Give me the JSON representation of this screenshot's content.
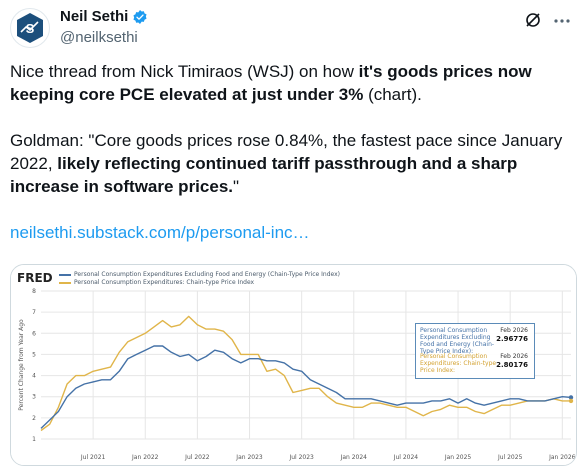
{
  "author": {
    "display_name": "Neil Sethi",
    "handle": "@neilksethi"
  },
  "tweet": {
    "p1_a": "Nice thread from Nick Timiraos (WSJ) on how ",
    "p1_b": "it's goods prices now keeping core PCE elevated at just under 3%",
    "p1_c": " (chart).",
    "p2_a": "Goldman: \"Core goods prices rose 0.84%, the fastest pace since January 2022, ",
    "p2_b": "likely reflecting continued tariff passthrough and a sharp increase in software prices.",
    "p2_c": "\"",
    "link": "neilsethi.substack.com/p/personal-inc…"
  },
  "chart_data": {
    "type": "line",
    "source_logo": "FRED",
    "ylabel": "Percent Change from Year Ago",
    "ylim": [
      1,
      8
    ],
    "y_ticks": [
      1,
      2,
      3,
      4,
      5,
      6,
      7,
      8
    ],
    "x_tick_labels": [
      "Jul 2021",
      "Jan 2022",
      "Jul 2022",
      "Jan 2023",
      "Jul 2023",
      "Jan 2024",
      "Jul 2024",
      "Jan 2025",
      "Jul 2025",
      "Jan 2026"
    ],
    "x_range": [
      "2021-01",
      "2026-02"
    ],
    "legend_position": "top-left",
    "series": [
      {
        "name": "Personal Consumption Expenditures Excluding Food and Energy (Chain-Type Price Index)",
        "color": "#4572a7",
        "dates": [
          "2021-01",
          "2021-02",
          "2021-03",
          "2021-04",
          "2021-05",
          "2021-06",
          "2021-07",
          "2021-08",
          "2021-09",
          "2021-10",
          "2021-11",
          "2021-12",
          "2022-01",
          "2022-02",
          "2022-03",
          "2022-04",
          "2022-05",
          "2022-06",
          "2022-07",
          "2022-08",
          "2022-09",
          "2022-10",
          "2022-11",
          "2022-12",
          "2023-01",
          "2023-02",
          "2023-03",
          "2023-04",
          "2023-05",
          "2023-06",
          "2023-07",
          "2023-08",
          "2023-09",
          "2023-10",
          "2023-11",
          "2023-12",
          "2024-01",
          "2024-02",
          "2024-03",
          "2024-04",
          "2024-05",
          "2024-06",
          "2024-07",
          "2024-08",
          "2024-09",
          "2024-10",
          "2024-11",
          "2024-12",
          "2025-01",
          "2025-02",
          "2025-03",
          "2025-04",
          "2025-05",
          "2025-06",
          "2025-07",
          "2025-08",
          "2025-09",
          "2025-10",
          "2025-11",
          "2025-12",
          "2026-01",
          "2026-02"
        ],
        "values": [
          1.5,
          1.9,
          2.3,
          3.0,
          3.4,
          3.6,
          3.7,
          3.8,
          3.8,
          4.2,
          4.8,
          5.0,
          5.2,
          5.4,
          5.4,
          5.1,
          4.9,
          5.0,
          4.7,
          4.9,
          5.2,
          5.1,
          4.8,
          4.6,
          4.8,
          4.8,
          4.7,
          4.7,
          4.6,
          4.3,
          4.2,
          3.8,
          3.6,
          3.4,
          3.2,
          2.9,
          2.9,
          2.9,
          2.9,
          2.8,
          2.7,
          2.6,
          2.7,
          2.7,
          2.7,
          2.8,
          2.8,
          2.9,
          2.7,
          2.9,
          2.7,
          2.6,
          2.7,
          2.8,
          2.9,
          2.9,
          2.8,
          2.8,
          2.8,
          2.9,
          3.0,
          2.96776
        ]
      },
      {
        "name": "Personal Consumption Expenditures: Chain-type Price Index",
        "color": "#e0b54a",
        "dates": [
          "2021-01",
          "2021-02",
          "2021-03",
          "2021-04",
          "2021-05",
          "2021-06",
          "2021-07",
          "2021-08",
          "2021-09",
          "2021-10",
          "2021-11",
          "2021-12",
          "2022-01",
          "2022-02",
          "2022-03",
          "2022-04",
          "2022-05",
          "2022-06",
          "2022-07",
          "2022-08",
          "2022-09",
          "2022-10",
          "2022-11",
          "2022-12",
          "2023-01",
          "2023-02",
          "2023-03",
          "2023-04",
          "2023-05",
          "2023-06",
          "2023-07",
          "2023-08",
          "2023-09",
          "2023-10",
          "2023-11",
          "2023-12",
          "2024-01",
          "2024-02",
          "2024-03",
          "2024-04",
          "2024-05",
          "2024-06",
          "2024-07",
          "2024-08",
          "2024-09",
          "2024-10",
          "2024-11",
          "2024-12",
          "2025-01",
          "2025-02",
          "2025-03",
          "2025-04",
          "2025-05",
          "2025-06",
          "2025-07",
          "2025-08",
          "2025-09",
          "2025-10",
          "2025-11",
          "2025-12",
          "2026-01",
          "2026-02"
        ],
        "values": [
          1.4,
          1.7,
          2.5,
          3.6,
          4.0,
          4.0,
          4.2,
          4.3,
          4.4,
          5.1,
          5.6,
          5.8,
          6.0,
          6.3,
          6.6,
          6.3,
          6.4,
          6.8,
          6.4,
          6.2,
          6.2,
          6.1,
          5.7,
          5.0,
          5.0,
          5.0,
          4.2,
          4.3,
          4.0,
          3.2,
          3.3,
          3.4,
          3.4,
          3.0,
          2.7,
          2.6,
          2.5,
          2.5,
          2.7,
          2.7,
          2.6,
          2.5,
          2.5,
          2.3,
          2.1,
          2.3,
          2.4,
          2.6,
          2.5,
          2.5,
          2.3,
          2.2,
          2.4,
          2.6,
          2.6,
          2.7,
          2.8,
          2.8,
          2.8,
          2.9,
          2.8,
          2.80176
        ]
      }
    ],
    "tooltip": {
      "entries": [
        {
          "label": "Personal Consumption Expenditures Excluding Food and Energy (Chain-Type Price Index):",
          "date": "Feb 2026",
          "value": "2.96776"
        },
        {
          "label": "Personal Consumption Expenditures: Chain-type Price Index:",
          "date": "Feb 2026",
          "value": "2.80176"
        }
      ]
    },
    "colors": {
      "core": "#4572a7",
      "headline": "#e0b54a",
      "grid": "#e6e6e6"
    }
  }
}
